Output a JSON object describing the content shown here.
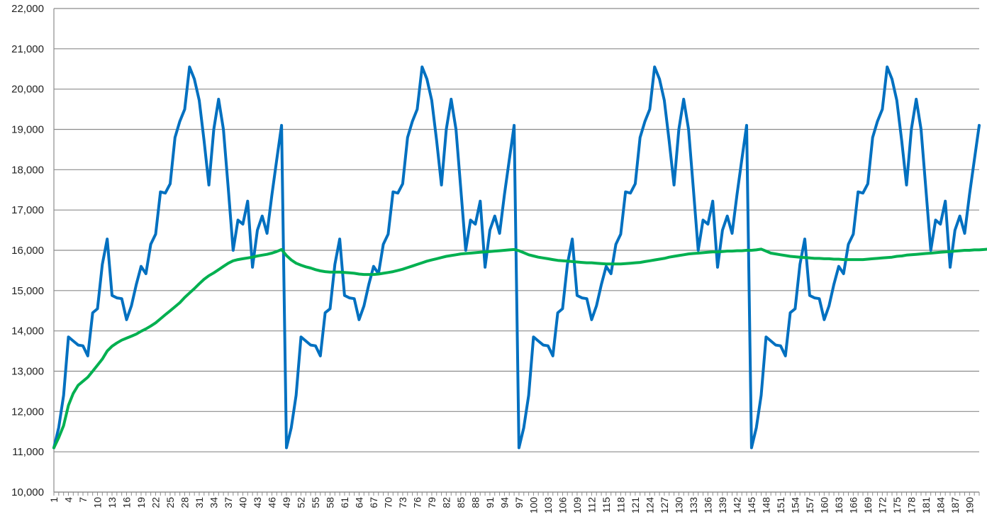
{
  "chart_data": {
    "type": "line",
    "title": "",
    "xlabel": "",
    "ylabel": "",
    "ylim": [
      10000,
      22000
    ],
    "xlim": [
      1,
      192
    ],
    "grid": true,
    "legend": "none",
    "yticks": [
      10000,
      11000,
      12000,
      13000,
      14000,
      15000,
      16000,
      17000,
      18000,
      19000,
      20000,
      21000,
      22000
    ],
    "ytick_labels": [
      "10,000",
      "11,000",
      "12,000",
      "13,000",
      "14,000",
      "15,000",
      "16,000",
      "17,000",
      "18,000",
      "19,000",
      "20,000",
      "21,000",
      "22,000"
    ],
    "xtick_labels": [
      "1",
      "4",
      "7",
      "10",
      "13",
      "16",
      "19",
      "22",
      "25",
      "28",
      "31",
      "34",
      "37",
      "40",
      "43",
      "46",
      "49",
      "52",
      "55",
      "58",
      "61",
      "64",
      "67",
      "70",
      "73",
      "76",
      "79",
      "82",
      "85",
      "88",
      "91",
      "94",
      "97",
      "100",
      "103",
      "106",
      "109",
      "112",
      "115",
      "118",
      "121",
      "124",
      "127",
      "130",
      "133",
      "136",
      "139",
      "142",
      "145",
      "148",
      "151",
      "154",
      "157",
      "160",
      "163",
      "166",
      "169",
      "172",
      "175",
      "178",
      "181",
      "184",
      "187",
      "190"
    ],
    "series": [
      {
        "color": "#0070c0",
        "period": 48,
        "values_one_period": [
          11100,
          11600,
          12400,
          13850,
          13750,
          13650,
          13630,
          13380,
          14450,
          14550,
          15650,
          16280,
          14880,
          14820,
          14800,
          14280,
          14620,
          15150,
          15600,
          15420,
          16150,
          16400,
          17450,
          17420,
          17650,
          18800,
          19200,
          19500,
          20550,
          20250,
          19720,
          18720,
          17620,
          19000,
          19750,
          19000,
          17520,
          16000,
          16750,
          16650,
          17220,
          15580,
          16500,
          16850,
          16420,
          17380,
          18250,
          19100
        ]
      },
      {
        "color": "#00b050",
        "values": [
          11100,
          11350,
          11650,
          12150,
          12450,
          12650,
          12750,
          12850,
          13000,
          13150,
          13300,
          13500,
          13620,
          13700,
          13770,
          13820,
          13870,
          13920,
          13990,
          14050,
          14120,
          14200,
          14300,
          14400,
          14500,
          14600,
          14700,
          14830,
          14940,
          15050,
          15170,
          15280,
          15370,
          15440,
          15520,
          15600,
          15680,
          15740,
          15770,
          15790,
          15810,
          15830,
          15860,
          15880,
          15900,
          15930,
          15970,
          16020,
          15870,
          15760,
          15680,
          15630,
          15590,
          15560,
          15520,
          15490,
          15470,
          15460,
          15460,
          15460,
          15450,
          15440,
          15430,
          15410,
          15400,
          15400,
          15400,
          15410,
          15430,
          15450,
          15470,
          15500,
          15530,
          15570,
          15610,
          15650,
          15690,
          15730,
          15760,
          15790,
          15820,
          15850,
          15870,
          15890,
          15910,
          15920,
          15930,
          15940,
          15950,
          15960,
          15970,
          15980,
          15990,
          16000,
          16010,
          16020,
          15990,
          15940,
          15890,
          15860,
          15830,
          15810,
          15790,
          15770,
          15750,
          15740,
          15730,
          15720,
          15710,
          15700,
          15690,
          15690,
          15680,
          15670,
          15660,
          15660,
          15660,
          15660,
          15670,
          15680,
          15690,
          15700,
          15720,
          15740,
          15760,
          15780,
          15800,
          15830,
          15850,
          15870,
          15890,
          15910,
          15920,
          15930,
          15940,
          15950,
          15960,
          15960,
          15970,
          15980,
          15980,
          15990,
          15990,
          16000,
          16000,
          16010,
          16030,
          15980,
          15930,
          15910,
          15890,
          15870,
          15850,
          15840,
          15830,
          15820,
          15810,
          15800,
          15800,
          15790,
          15790,
          15780,
          15780,
          15770,
          15770,
          15770,
          15770,
          15770,
          15780,
          15790,
          15800,
          15810,
          15820,
          15830,
          15850,
          15860,
          15880,
          15890,
          15900,
          15910,
          15920,
          15930,
          15940,
          15950,
          15960,
          15970,
          15980,
          15990,
          16000,
          16000,
          16010,
          16010,
          16020,
          16030
        ]
      }
    ]
  }
}
